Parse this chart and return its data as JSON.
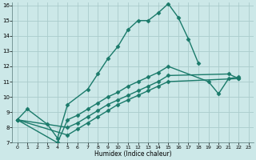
{
  "xlabel": "Humidex (Indice chaleur)",
  "xlim": [
    -0.5,
    23.5
  ],
  "ylim": [
    7,
    16.2
  ],
  "yticks": [
    7,
    8,
    9,
    10,
    11,
    12,
    13,
    14,
    15,
    16
  ],
  "xticks": [
    0,
    1,
    2,
    3,
    4,
    5,
    6,
    7,
    8,
    9,
    10,
    11,
    12,
    13,
    14,
    15,
    16,
    17,
    18,
    19,
    20,
    21,
    22,
    23
  ],
  "bg_color": "#cce8e8",
  "grid_color": "#aacccc",
  "line_color": "#1a7a6a",
  "line_width": 1.0,
  "marker": "D",
  "marker_size": 2.5,
  "lines": [
    {
      "x": [
        0,
        1,
        3,
        4,
        5,
        7,
        8,
        9,
        10,
        11,
        12,
        13,
        14,
        15,
        16,
        17,
        18
      ],
      "y": [
        8.5,
        9.2,
        8.2,
        7.3,
        9.5,
        10.5,
        11.5,
        12.5,
        13.3,
        14.4,
        15.0,
        15.0,
        15.5,
        16.1,
        15.2,
        13.8,
        12.2
      ]
    },
    {
      "x": [
        0,
        4,
        5,
        6,
        7,
        8,
        9,
        10,
        11,
        12,
        13,
        14,
        15,
        19,
        20,
        21,
        22
      ],
      "y": [
        8.5,
        7.0,
        8.5,
        8.8,
        9.2,
        9.6,
        10.0,
        10.3,
        10.7,
        11.0,
        11.3,
        11.6,
        12.0,
        11.0,
        10.2,
        11.2,
        11.3
      ]
    },
    {
      "x": [
        0,
        5,
        6,
        7,
        8,
        9,
        10,
        11,
        12,
        13,
        14,
        15,
        21,
        22
      ],
      "y": [
        8.5,
        8.0,
        8.3,
        8.7,
        9.1,
        9.5,
        9.8,
        10.1,
        10.4,
        10.7,
        11.0,
        11.4,
        11.5,
        11.2
      ]
    },
    {
      "x": [
        0,
        5,
        6,
        7,
        8,
        9,
        10,
        11,
        12,
        13,
        14,
        15,
        22
      ],
      "y": [
        8.5,
        7.5,
        7.9,
        8.3,
        8.7,
        9.1,
        9.5,
        9.8,
        10.1,
        10.4,
        10.7,
        11.0,
        11.2
      ]
    }
  ]
}
